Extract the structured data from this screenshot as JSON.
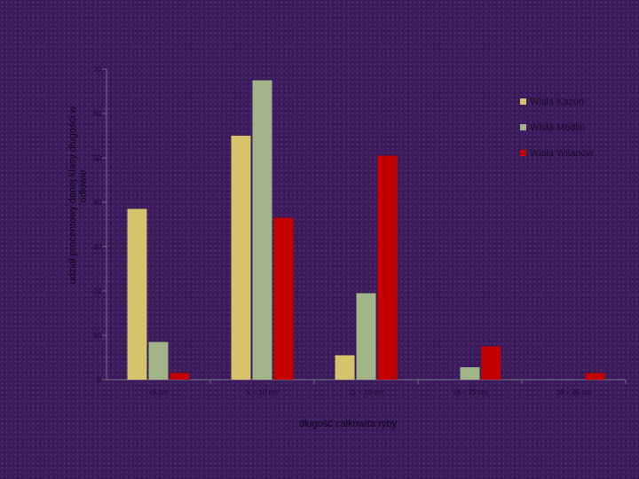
{
  "chart_data": {
    "type": "bar",
    "title": "",
    "xlabel": "długość całkowita ryby",
    "ylabel": "udział procentowy danej klasy długości w odłowie",
    "categories": [
      "<5 cm",
      "6 – 10 cm",
      "11 – 15 cm",
      "16 – 25 cm",
      "26 – 35 cm"
    ],
    "series": [
      {
        "name": "Wisła Kazuń",
        "color": "#d6c36a",
        "values": [
          38.5,
          55,
          5.5,
          0,
          0
        ]
      },
      {
        "name": "Wisła Modlin",
        "color": "#a2b588",
        "values": [
          8.5,
          67.5,
          19.5,
          2.8,
          0
        ]
      },
      {
        "name": "Wisła Wilanów",
        "color": "#c40000",
        "values": [
          1.5,
          36.5,
          50.5,
          7.5,
          1.5
        ]
      }
    ],
    "ylim": [
      0,
      70
    ],
    "yticks": [
      "0",
      "10",
      "20",
      "30",
      "40",
      "50",
      "60",
      "70"
    ],
    "grid": false,
    "legend": "right"
  }
}
